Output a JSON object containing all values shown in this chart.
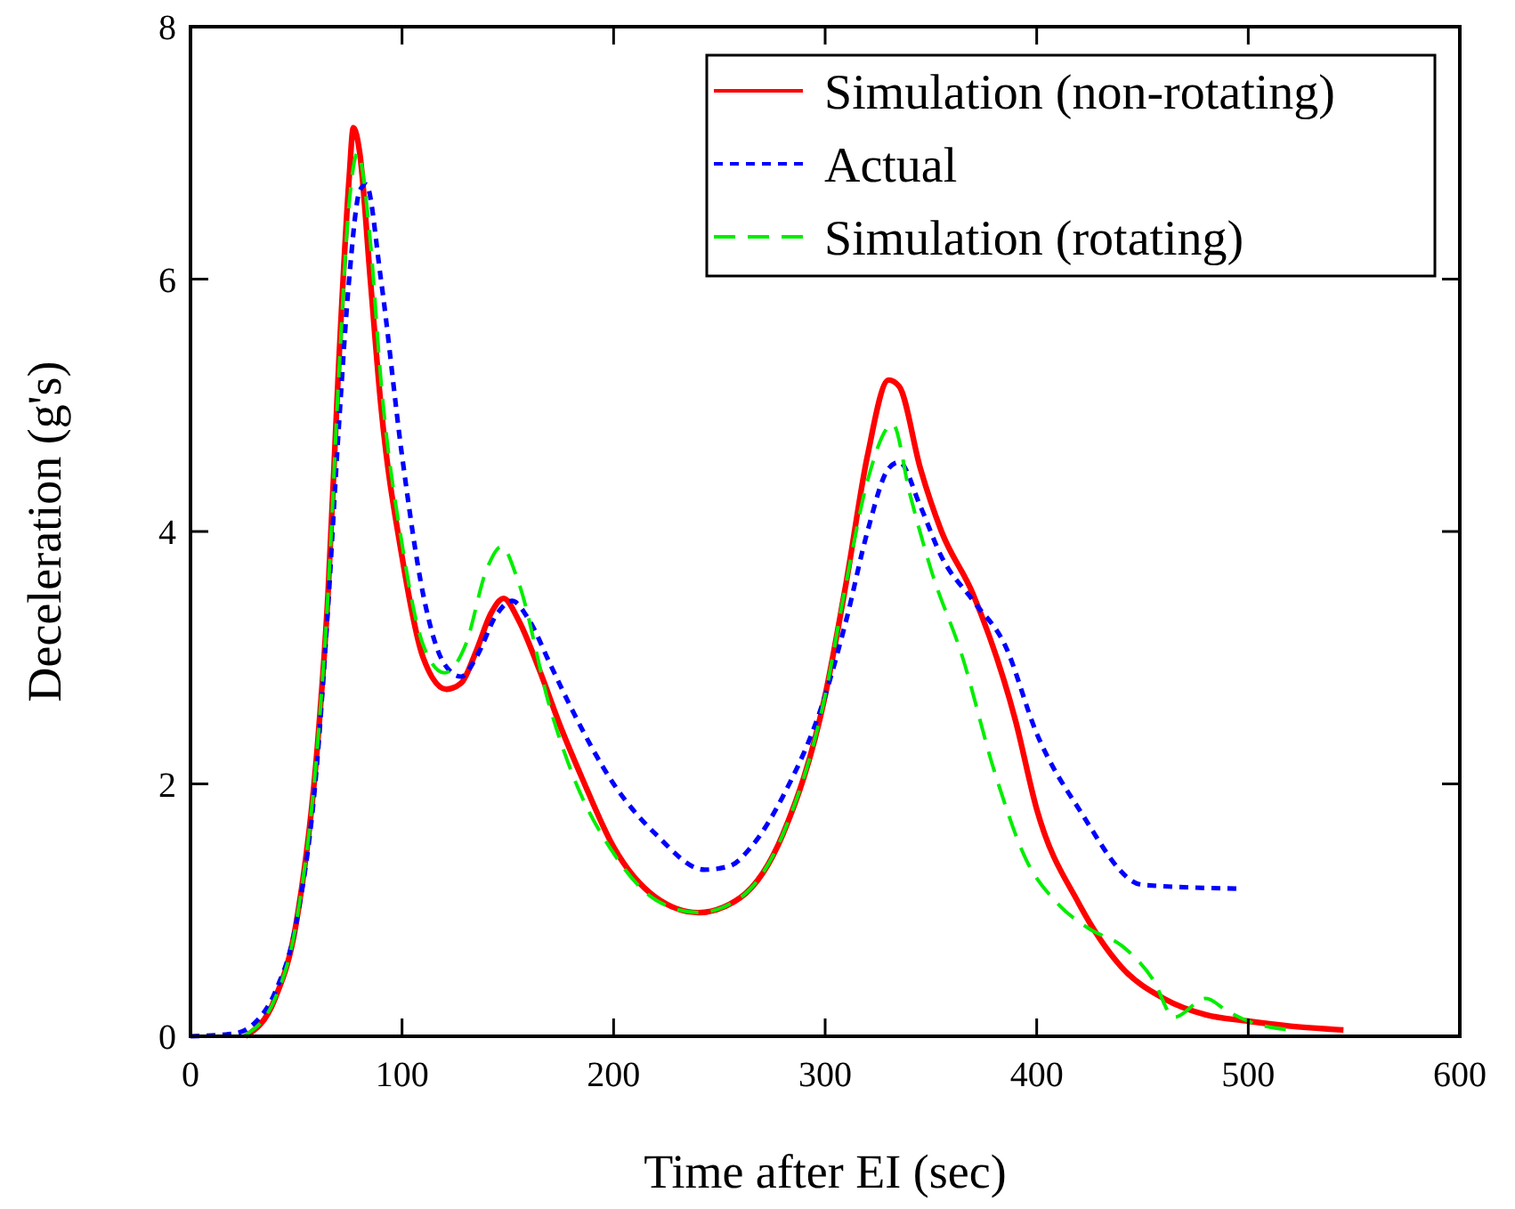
{
  "chart_data": {
    "type": "line",
    "xlabel": "Time after EI (sec)",
    "ylabel": "Deceleration (g's)",
    "xlim": [
      0,
      600
    ],
    "ylim": [
      0,
      8
    ],
    "xticks": [
      0,
      100,
      200,
      300,
      400,
      500,
      600
    ],
    "yticks": [
      0,
      2,
      4,
      6,
      8
    ],
    "grid": false,
    "legend": "top right",
    "series": [
      {
        "name": "Simulation (non-rotating)",
        "color": "#ff0000",
        "line_style": "solid",
        "x": [
          26,
          40,
          50,
          60,
          65,
          70,
          75,
          77,
          80,
          85,
          90,
          100,
          110,
          121,
          128,
          135,
          142,
          148,
          155,
          165,
          175,
          185,
          200,
          220,
          240,
          260,
          280,
          300,
          310,
          320,
          330,
          335,
          345,
          355,
          370,
          390,
          400,
          420,
          440,
          460,
          480,
          500,
          520,
          545
        ],
        "values": [
          0,
          0.3,
          0.9,
          2.3,
          3.5,
          5.3,
          6.8,
          7.2,
          7.0,
          6.0,
          5.0,
          3.8,
          3.0,
          2.75,
          2.8,
          3.05,
          3.35,
          3.47,
          3.3,
          2.9,
          2.45,
          2.05,
          1.5,
          1.1,
          0.98,
          1.1,
          1.6,
          2.7,
          3.6,
          4.6,
          5.2,
          5.15,
          4.5,
          4.0,
          3.5,
          2.5,
          1.8,
          1.05,
          0.55,
          0.3,
          0.17,
          0.12,
          0.08,
          0.05
        ]
      },
      {
        "name": "Actual",
        "color": "#0000ff",
        "line_style": "dotted",
        "x": [
          0,
          20,
          30,
          40,
          50,
          60,
          65,
          70,
          75,
          80,
          83,
          90,
          100,
          110,
          120,
          128,
          135,
          145,
          152,
          160,
          170,
          180,
          200,
          220,
          243,
          255,
          265,
          280,
          300,
          310,
          320,
          330,
          335,
          345,
          355,
          370,
          385,
          400,
          420,
          450,
          495
        ],
        "values": [
          0,
          0.02,
          0.1,
          0.35,
          0.9,
          2.2,
          3.4,
          4.8,
          6.0,
          6.7,
          6.75,
          6.0,
          4.6,
          3.5,
          2.95,
          2.85,
          3.0,
          3.35,
          3.45,
          3.3,
          2.95,
          2.6,
          2.0,
          1.6,
          1.32,
          1.35,
          1.5,
          1.9,
          2.7,
          3.3,
          4.0,
          4.5,
          4.55,
          4.2,
          3.8,
          3.45,
          3.1,
          2.4,
          1.8,
          1.2,
          1.17
        ]
      },
      {
        "name": "Simulation (rotating)",
        "color": "#00ee00",
        "line_style": "dashed",
        "x": [
          25,
          40,
          50,
          60,
          65,
          70,
          75,
          79,
          85,
          90,
          100,
          110,
          120,
          130,
          140,
          147,
          155,
          170,
          180,
          200,
          220,
          240,
          260,
          280,
          300,
          310,
          320,
          332,
          340,
          350,
          365,
          380,
          395,
          410,
          425,
          440,
          455,
          465,
          480,
          490,
          500,
          520
        ],
        "values": [
          0,
          0.3,
          0.9,
          2.3,
          3.5,
          5.2,
          6.6,
          7.0,
          6.3,
          5.2,
          3.9,
          3.1,
          2.88,
          3.1,
          3.7,
          3.88,
          3.6,
          2.6,
          2.1,
          1.45,
          1.08,
          0.98,
          1.1,
          1.6,
          2.7,
          3.6,
          4.4,
          4.85,
          4.3,
          3.7,
          3.0,
          2.1,
          1.4,
          1.05,
          0.85,
          0.72,
          0.45,
          0.15,
          0.3,
          0.2,
          0.12,
          0.05
        ]
      }
    ]
  }
}
